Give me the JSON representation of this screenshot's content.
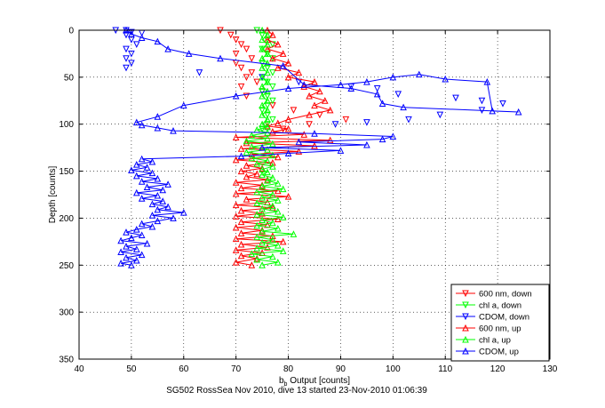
{
  "chart_data": {
    "type": "line",
    "ylabel": "Depth [counts]",
    "xlabel_main": "b",
    "xlabel_sub": "b",
    "xlabel_rest": " Output [counts]",
    "caption": "SG502 RossSea Nov 2010, dive 13 started 23-Nov-2010 01:06:39",
    "xlim": [
      40,
      130
    ],
    "ylim": [
      0,
      350
    ],
    "y_reversed": true,
    "grid": true,
    "grid_style": "dotted",
    "legend_position": "bottom-right",
    "x_ticks": [
      40,
      50,
      60,
      70,
      80,
      90,
      100,
      110,
      120,
      130
    ],
    "y_ticks": [
      0,
      50,
      100,
      150,
      200,
      250,
      300,
      350
    ],
    "legend": [
      {
        "label": "600 nm, down",
        "color": "#ff0000",
        "marker": "triangle-down"
      },
      {
        "label": "chl a, down",
        "color": "#00ff00",
        "marker": "triangle-down"
      },
      {
        "label": "CDOM, down",
        "color": "#0000ff",
        "marker": "triangle-down"
      },
      {
        "label": "600 nm, up",
        "color": "#ff0000",
        "marker": "triangle-up"
      },
      {
        "label": "chl a, up",
        "color": "#00ff00",
        "marker": "triangle-up"
      },
      {
        "label": "CDOM, up",
        "color": "#0000ff",
        "marker": "triangle-up"
      }
    ],
    "series": [
      {
        "name": "600 nm, down",
        "color": "#ff0000",
        "marker": "triangle-down",
        "line": false,
        "points": [
          [
            67,
            0
          ],
          [
            69,
            5
          ],
          [
            70,
            10
          ],
          [
            71,
            15
          ],
          [
            72,
            20
          ],
          [
            70,
            25
          ],
          [
            73,
            30
          ],
          [
            70,
            35
          ],
          [
            71,
            40
          ],
          [
            73,
            45
          ],
          [
            72,
            50
          ],
          [
            74,
            55
          ],
          [
            71,
            60
          ],
          [
            75,
            65
          ],
          [
            72,
            70
          ],
          [
            77,
            80
          ],
          [
            81,
            85
          ],
          [
            86,
            90
          ],
          [
            91,
            95
          ],
          [
            84,
            100
          ],
          [
            79,
            105
          ]
        ]
      },
      {
        "name": "chl a, down",
        "color": "#00ff00",
        "marker": "triangle-down",
        "line": false,
        "points": [
          [
            74,
            0
          ],
          [
            75,
            5
          ],
          [
            76,
            10
          ],
          [
            77,
            15
          ],
          [
            75,
            20
          ],
          [
            76,
            25
          ],
          [
            77,
            30
          ],
          [
            75,
            35
          ],
          [
            76,
            40
          ],
          [
            77,
            45
          ],
          [
            75,
            50
          ],
          [
            76,
            55
          ],
          [
            77,
            60
          ],
          [
            75,
            65
          ],
          [
            76,
            70
          ],
          [
            77,
            75
          ],
          [
            76,
            80
          ],
          [
            75,
            85
          ],
          [
            76,
            90
          ],
          [
            77,
            95
          ],
          [
            76,
            100
          ],
          [
            75,
            105
          ]
        ]
      },
      {
        "name": "CDOM, down",
        "color": "#0000ff",
        "marker": "triangle-down",
        "line": false,
        "points": [
          [
            47,
            0
          ],
          [
            49,
            0
          ],
          [
            50,
            2
          ],
          [
            52,
            3
          ],
          [
            49,
            5
          ],
          [
            50,
            10
          ],
          [
            51,
            15
          ],
          [
            49,
            20
          ],
          [
            50,
            25
          ],
          [
            49,
            30
          ],
          [
            50,
            35
          ],
          [
            49,
            40
          ],
          [
            63,
            45
          ],
          [
            75,
            50
          ],
          [
            82,
            55
          ],
          [
            92,
            60
          ],
          [
            97,
            62
          ],
          [
            101,
            68
          ],
          [
            112,
            72
          ],
          [
            117,
            75
          ],
          [
            121,
            78
          ],
          [
            117,
            85
          ],
          [
            109,
            90
          ],
          [
            103,
            95
          ],
          [
            95,
            98
          ],
          [
            89,
            100
          ]
        ]
      },
      {
        "name": "600 nm, up",
        "color": "#ff0000",
        "marker": "triangle-up",
        "line": true,
        "points": [
          [
            73,
            250
          ],
          [
            70,
            247
          ],
          [
            74,
            243
          ],
          [
            71,
            240
          ],
          [
            75,
            237
          ],
          [
            70,
            234
          ],
          [
            76,
            231
          ],
          [
            71,
            228
          ],
          [
            79,
            225
          ],
          [
            70,
            222
          ],
          [
            77,
            219
          ],
          [
            71,
            216
          ],
          [
            75,
            213
          ],
          [
            70,
            210
          ],
          [
            76,
            207
          ],
          [
            71,
            204
          ],
          [
            78,
            201
          ],
          [
            70,
            198
          ],
          [
            75,
            195
          ],
          [
            71,
            192
          ],
          [
            77,
            189
          ],
          [
            70,
            186
          ],
          [
            76,
            183
          ],
          [
            72,
            180
          ],
          [
            80,
            177
          ],
          [
            70,
            174
          ],
          [
            78,
            171
          ],
          [
            71,
            168
          ],
          [
            75,
            165
          ],
          [
            70,
            162
          ],
          [
            76,
            159
          ],
          [
            72,
            156
          ],
          [
            74,
            153
          ],
          [
            71,
            150
          ],
          [
            75,
            147
          ],
          [
            72,
            144
          ],
          [
            77,
            141
          ],
          [
            70,
            138
          ],
          [
            78,
            135
          ],
          [
            73,
            132
          ],
          [
            82,
            129
          ],
          [
            71,
            126
          ],
          [
            85,
            123
          ],
          [
            72,
            120
          ],
          [
            88,
            117
          ],
          [
            70,
            114
          ],
          [
            83,
            111
          ],
          [
            77,
            108
          ],
          [
            80,
            105
          ],
          [
            76,
            102
          ],
          [
            78,
            99
          ],
          [
            80,
            95
          ],
          [
            84,
            90
          ],
          [
            88,
            85
          ],
          [
            85,
            80
          ],
          [
            87,
            75
          ],
          [
            84,
            70
          ],
          [
            86,
            65
          ],
          [
            83,
            60
          ],
          [
            85,
            55
          ],
          [
            80,
            50
          ],
          [
            82,
            45
          ],
          [
            78,
            40
          ],
          [
            80,
            35
          ],
          [
            77,
            30
          ],
          [
            79,
            25
          ],
          [
            76,
            20
          ],
          [
            78,
            15
          ],
          [
            76,
            10
          ],
          [
            77,
            5
          ],
          [
            76,
            0
          ]
        ]
      },
      {
        "name": "chl a, up",
        "color": "#00ff00",
        "marker": "triangle-up",
        "line": true,
        "points": [
          [
            75,
            250
          ],
          [
            78,
            247
          ],
          [
            74,
            244
          ],
          [
            77,
            241
          ],
          [
            73,
            238
          ],
          [
            79,
            235
          ],
          [
            74,
            232
          ],
          [
            78,
            229
          ],
          [
            75,
            226
          ],
          [
            77,
            223
          ],
          [
            74,
            220
          ],
          [
            81,
            217
          ],
          [
            75,
            214
          ],
          [
            78,
            211
          ],
          [
            74,
            208
          ],
          [
            77,
            205
          ],
          [
            75,
            202
          ],
          [
            79,
            199
          ],
          [
            74,
            196
          ],
          [
            78,
            193
          ],
          [
            75,
            190
          ],
          [
            77,
            187
          ],
          [
            74,
            184
          ],
          [
            78,
            181
          ],
          [
            75,
            178
          ],
          [
            77,
            175
          ],
          [
            74,
            172
          ],
          [
            79,
            169
          ],
          [
            75,
            166
          ],
          [
            78,
            163
          ],
          [
            76,
            160
          ],
          [
            77,
            157
          ],
          [
            75,
            154
          ],
          [
            76,
            151
          ],
          [
            75,
            148
          ],
          [
            77,
            145
          ],
          [
            74,
            142
          ],
          [
            76,
            139
          ],
          [
            73,
            136
          ],
          [
            77,
            133
          ],
          [
            72,
            130
          ],
          [
            76,
            127
          ],
          [
            73,
            124
          ],
          [
            77,
            121
          ],
          [
            72,
            118
          ],
          [
            76,
            115
          ],
          [
            73,
            112
          ],
          [
            76,
            109
          ],
          [
            74,
            106
          ],
          [
            76,
            103
          ],
          [
            75,
            100
          ],
          [
            76,
            95
          ],
          [
            75,
            90
          ],
          [
            76,
            85
          ],
          [
            75,
            80
          ],
          [
            76,
            75
          ],
          [
            75,
            70
          ],
          [
            76,
            65
          ],
          [
            75,
            60
          ],
          [
            76,
            55
          ],
          [
            75,
            50
          ],
          [
            76,
            45
          ],
          [
            75,
            40
          ],
          [
            76,
            35
          ],
          [
            75,
            30
          ],
          [
            76,
            25
          ],
          [
            75,
            20
          ],
          [
            76,
            15
          ],
          [
            75,
            10
          ],
          [
            76,
            5
          ],
          [
            75,
            0
          ]
        ]
      },
      {
        "name": "CDOM, up",
        "color": "#0000ff",
        "marker": "triangle-up",
        "line": true,
        "points": [
          [
            50,
            250
          ],
          [
            48,
            248
          ],
          [
            51,
            245
          ],
          [
            49,
            242
          ],
          [
            52,
            239
          ],
          [
            48,
            236
          ],
          [
            51,
            233
          ],
          [
            49,
            230
          ],
          [
            53,
            227
          ],
          [
            48,
            224
          ],
          [
            50,
            221
          ],
          [
            52,
            218
          ],
          [
            49,
            215
          ],
          [
            51,
            212
          ],
          [
            54,
            209
          ],
          [
            52,
            206
          ],
          [
            55,
            203
          ],
          [
            58,
            200
          ],
          [
            54,
            197
          ],
          [
            60,
            194
          ],
          [
            55,
            191
          ],
          [
            57,
            188
          ],
          [
            54,
            185
          ],
          [
            56,
            182
          ],
          [
            52,
            179
          ],
          [
            55,
            176
          ],
          [
            51,
            173
          ],
          [
            56,
            170
          ],
          [
            53,
            167
          ],
          [
            57,
            164
          ],
          [
            52,
            161
          ],
          [
            55,
            158
          ],
          [
            51,
            155
          ],
          [
            54,
            152
          ],
          [
            50,
            149
          ],
          [
            53,
            146
          ],
          [
            51,
            143
          ],
          [
            54,
            140
          ],
          [
            52,
            137
          ],
          [
            71,
            134
          ],
          [
            80,
            131
          ],
          [
            90,
            128
          ],
          [
            75,
            125
          ],
          [
            95,
            122
          ],
          [
            82,
            119
          ],
          [
            98,
            116
          ],
          [
            100,
            113
          ],
          [
            85,
            110
          ],
          [
            58,
            107
          ],
          [
            55,
            104
          ],
          [
            52,
            101
          ],
          [
            51,
            98
          ],
          [
            55,
            92
          ],
          [
            60,
            80
          ],
          [
            70,
            70
          ],
          [
            80,
            62
          ],
          [
            90,
            58
          ],
          [
            95,
            55
          ],
          [
            100,
            50
          ],
          [
            105,
            47
          ],
          [
            110,
            52
          ],
          [
            118,
            55
          ],
          [
            119,
            86
          ],
          [
            124,
            87
          ],
          [
            102,
            82
          ],
          [
            98,
            78
          ],
          [
            97,
            68
          ],
          [
            92,
            62
          ],
          [
            83,
            58
          ],
          [
            79,
            38
          ],
          [
            67,
            30
          ],
          [
            61,
            25
          ],
          [
            57,
            20
          ],
          [
            55,
            12
          ],
          [
            52,
            8
          ],
          [
            50,
            4
          ],
          [
            49,
            0
          ]
        ]
      }
    ]
  }
}
